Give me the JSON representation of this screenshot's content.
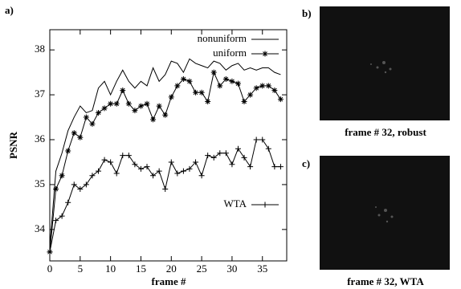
{
  "chart_data": {
    "type": "line",
    "panel_label": "a)",
    "xlabel": "frame #",
    "ylabel": "PSNR",
    "x": [
      0,
      1,
      2,
      3,
      4,
      5,
      6,
      7,
      8,
      9,
      10,
      11,
      12,
      13,
      14,
      15,
      16,
      17,
      18,
      19,
      20,
      21,
      22,
      23,
      24,
      25,
      26,
      27,
      28,
      29,
      30,
      31,
      32,
      33,
      34,
      35,
      36,
      37,
      38
    ],
    "series": [
      {
        "name": "nonuniform",
        "color": "#000000",
        "marker": "none",
        "values": [
          33.6,
          35.3,
          35.7,
          36.2,
          36.5,
          36.75,
          36.6,
          36.65,
          37.15,
          37.3,
          37.0,
          37.3,
          37.55,
          37.3,
          37.15,
          37.3,
          37.2,
          37.6,
          37.3,
          37.45,
          37.75,
          37.7,
          37.5,
          37.8,
          37.7,
          37.65,
          37.6,
          37.75,
          37.7,
          37.55,
          37.65,
          37.7,
          37.55,
          37.6,
          37.55,
          37.6,
          37.6,
          37.5,
          37.45
        ]
      },
      {
        "name": "uniform",
        "color": "#000000",
        "marker": "star",
        "values": [
          33.5,
          34.9,
          35.2,
          35.75,
          36.15,
          36.05,
          36.5,
          36.35,
          36.6,
          36.7,
          36.8,
          36.8,
          37.1,
          36.8,
          36.65,
          36.75,
          36.8,
          36.45,
          36.75,
          36.55,
          36.95,
          37.2,
          37.35,
          37.3,
          37.05,
          37.05,
          36.85,
          37.5,
          37.2,
          37.35,
          37.3,
          37.25,
          36.85,
          37.0,
          37.15,
          37.2,
          37.2,
          37.1,
          36.9
        ]
      },
      {
        "name": "WTA",
        "color": "#000000",
        "marker": "plus",
        "values": [
          33.5,
          34.2,
          34.3,
          34.6,
          35.0,
          34.9,
          35.0,
          35.2,
          35.3,
          35.55,
          35.5,
          35.25,
          35.65,
          35.65,
          35.45,
          35.35,
          35.4,
          35.2,
          35.3,
          34.9,
          35.5,
          35.25,
          35.3,
          35.35,
          35.5,
          35.2,
          35.65,
          35.6,
          35.7,
          35.7,
          35.45,
          35.8,
          35.6,
          35.4,
          36.0,
          36.0,
          35.8,
          35.4,
          35.4
        ]
      }
    ],
    "xlim": [
      0,
      39
    ],
    "ylim": [
      33.3,
      38.45
    ],
    "xticks": [
      0,
      5,
      10,
      15,
      20,
      25,
      30,
      35
    ],
    "yticks": [
      34,
      35,
      36,
      37,
      38
    ]
  },
  "images": [
    {
      "label": "b)",
      "caption": "frame # 32, robust"
    },
    {
      "label": "c)",
      "caption": "frame # 32, WTA"
    }
  ]
}
